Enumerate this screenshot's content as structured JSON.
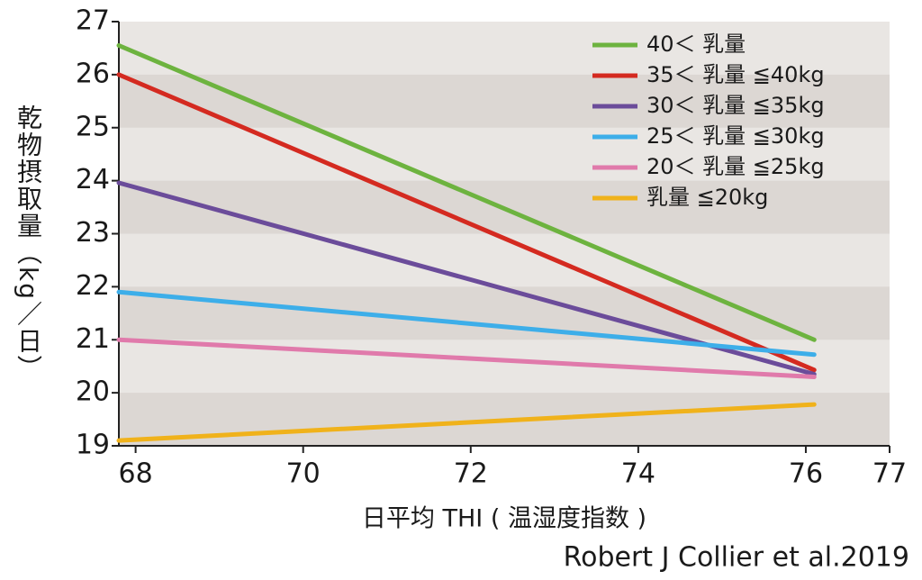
{
  "chart_data": {
    "type": "line",
    "y_label": "乾物摂取量（kg／日）",
    "x_label": "日平均 THI ( 温湿度指数 )",
    "source": "Robert J Collier et al.2019",
    "x": [
      67.8,
      76.1
    ],
    "series": [
      {
        "name": "40＜ 乳量",
        "color": "#6db33f",
        "values": [
          26.55,
          21.0
        ]
      },
      {
        "name": "35＜ 乳量 ≦40kg",
        "color": "#d42a20",
        "values": [
          26.0,
          20.43
        ]
      },
      {
        "name": "30＜ 乳量 ≦35kg",
        "color": "#6b4c9a",
        "values": [
          23.96,
          20.35
        ]
      },
      {
        "name": "25＜ 乳量 ≦30kg",
        "color": "#3daee9",
        "values": [
          21.9,
          20.72
        ]
      },
      {
        "name": "20＜ 乳量 ≦25kg",
        "color": "#e07aab",
        "values": [
          21.0,
          20.3
        ]
      },
      {
        "name": "乳量 ≦20kg",
        "color": "#f0b21b",
        "values": [
          19.1,
          19.78
        ]
      }
    ],
    "xlim": [
      67.8,
      77
    ],
    "xticks": [
      68,
      70,
      72,
      74,
      76,
      77
    ],
    "ylim": [
      19,
      27
    ],
    "yticks": [
      19,
      20,
      21,
      22,
      23,
      24,
      25,
      26,
      27
    ],
    "grid_bands": true,
    "legend": "upper right"
  }
}
